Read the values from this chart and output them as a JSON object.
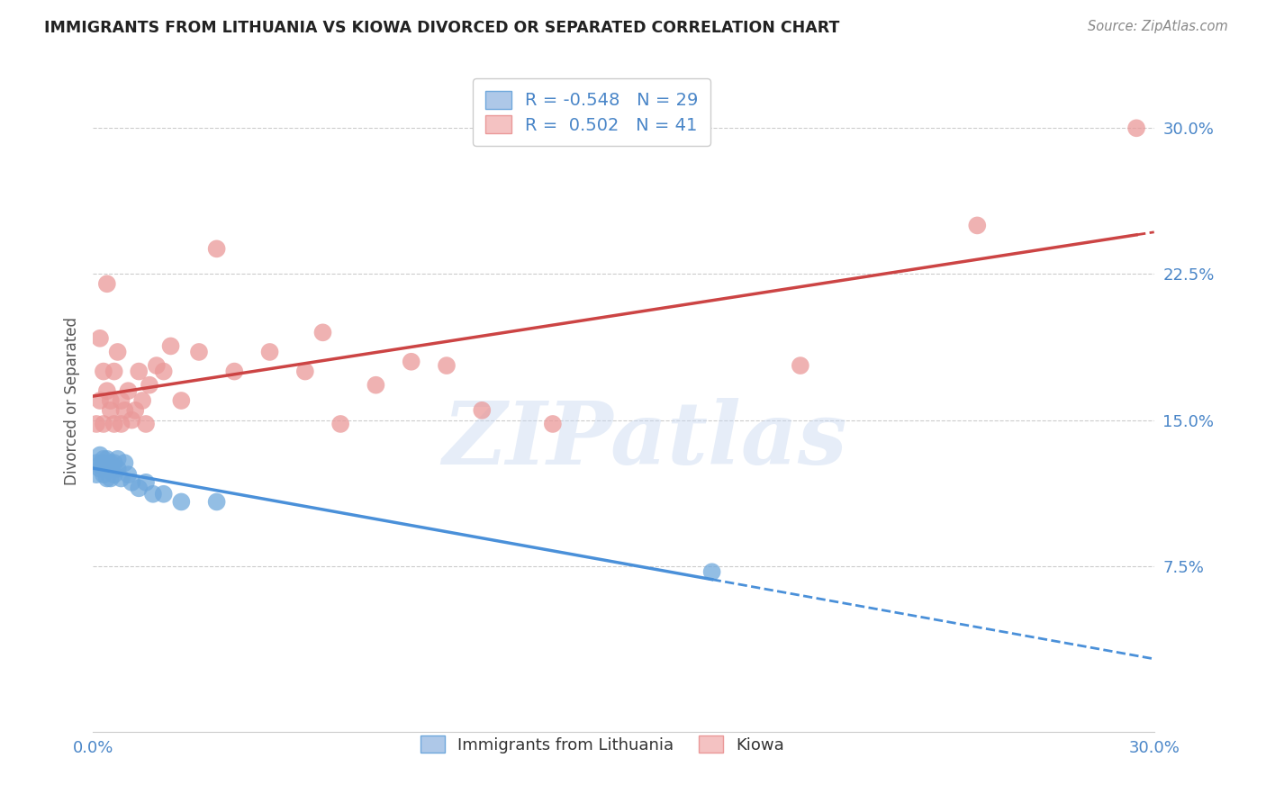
{
  "title": "IMMIGRANTS FROM LITHUANIA VS KIOWA DIVORCED OR SEPARATED CORRELATION CHART",
  "source": "Source: ZipAtlas.com",
  "ylabel": "Divorced or Separated",
  "xlim": [
    0.0,
    0.3
  ],
  "ylim": [
    -0.01,
    0.33
  ],
  "xtick_vals": [
    0.0,
    0.3
  ],
  "xtick_labels": [
    "0.0%",
    "30.0%"
  ],
  "ytick_positions": [
    0.075,
    0.15,
    0.225,
    0.3
  ],
  "ytick_labels": [
    "7.5%",
    "15.0%",
    "22.5%",
    "30.0%"
  ],
  "grid_color": "#cccccc",
  "background_color": "#ffffff",
  "watermark": "ZIPatlas",
  "series": [
    {
      "name": "Immigrants from Lithuania",
      "color": "#6fa8dc",
      "R": -0.548,
      "N": 29,
      "line_color": "#4a90d9",
      "x": [
        0.001,
        0.001,
        0.002,
        0.002,
        0.002,
        0.003,
        0.003,
        0.003,
        0.004,
        0.004,
        0.004,
        0.005,
        0.005,
        0.005,
        0.006,
        0.006,
        0.007,
        0.007,
        0.008,
        0.009,
        0.01,
        0.011,
        0.013,
        0.015,
        0.017,
        0.02,
        0.025,
        0.035,
        0.175
      ],
      "y": [
        0.128,
        0.122,
        0.132,
        0.127,
        0.125,
        0.13,
        0.128,
        0.122,
        0.13,
        0.125,
        0.12,
        0.128,
        0.125,
        0.12,
        0.128,
        0.122,
        0.13,
        0.125,
        0.12,
        0.128,
        0.122,
        0.118,
        0.115,
        0.118,
        0.112,
        0.112,
        0.108,
        0.108,
        0.072
      ]
    },
    {
      "name": "Kiowa",
      "color": "#ea9999",
      "R": 0.502,
      "N": 41,
      "line_color": "#cc4444",
      "x": [
        0.001,
        0.002,
        0.002,
        0.003,
        0.003,
        0.004,
        0.004,
        0.005,
        0.005,
        0.006,
        0.006,
        0.007,
        0.008,
        0.008,
        0.009,
        0.01,
        0.011,
        0.012,
        0.013,
        0.014,
        0.015,
        0.016,
        0.018,
        0.02,
        0.022,
        0.025,
        0.03,
        0.035,
        0.04,
        0.05,
        0.06,
        0.065,
        0.07,
        0.08,
        0.09,
        0.1,
        0.11,
        0.13,
        0.2,
        0.25,
        0.295
      ],
      "y": [
        0.148,
        0.192,
        0.16,
        0.148,
        0.175,
        0.165,
        0.22,
        0.155,
        0.16,
        0.148,
        0.175,
        0.185,
        0.148,
        0.16,
        0.155,
        0.165,
        0.15,
        0.155,
        0.175,
        0.16,
        0.148,
        0.168,
        0.178,
        0.175,
        0.188,
        0.16,
        0.185,
        0.238,
        0.175,
        0.185,
        0.175,
        0.195,
        0.148,
        0.168,
        0.18,
        0.178,
        0.155,
        0.148,
        0.178,
        0.25,
        0.3
      ]
    }
  ]
}
